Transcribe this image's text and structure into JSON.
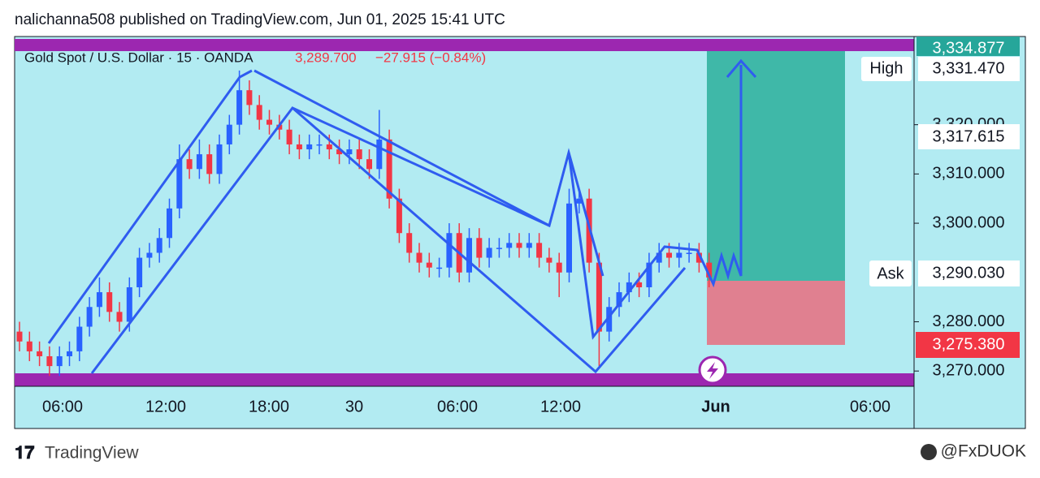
{
  "header": {
    "publisher": "nalichanna508 published on TradingView.com, Jun 01, 2025 15:41 UTC"
  },
  "chart_data": {
    "type": "candlestick",
    "title": "Gold Spot / U.S. Dollar · 15 · OANDA",
    "last_price": "3,289.700",
    "change": "−27.915 (−0.84%)",
    "ylim": [
      3266.9,
      3337.9
    ],
    "yticks": [
      {
        "value": 3270,
        "label": "3,270.000"
      },
      {
        "value": 3280,
        "label": "3,280.000"
      },
      {
        "value": 3300,
        "label": "3,300.000"
      },
      {
        "value": 3310,
        "label": "3,310.000"
      },
      {
        "value": 3320,
        "label": "3,320.000"
      }
    ],
    "xticks": [
      "06:00",
      "12:00",
      "18:00",
      "30",
      "06:00",
      "12:00",
      "Jun",
      "06:00"
    ],
    "up_color": "#2962ff",
    "down_color": "#f23645",
    "open": [
      3278,
      3276,
      3274,
      3273,
      3271,
      3273,
      3274,
      3279,
      3283,
      3286,
      3282,
      3280,
      3287,
      3293,
      3294,
      3297,
      3303,
      3313,
      3311,
      3314,
      3310,
      3316,
      3320,
      3327,
      3324,
      3321,
      3320,
      3319,
      3316,
      3315,
      3316,
      3316,
      3315,
      3314,
      3315,
      3313,
      3311,
      3317,
      3305,
      3298,
      3294,
      3292,
      3291,
      3291,
      3298,
      3290,
      3297,
      3293,
      3295,
      3295,
      3296,
      3295,
      3296,
      3293,
      3292,
      3290,
      3304,
      3305,
      3292,
      3278,
      3283,
      3286,
      3288,
      3287,
      3292,
      3294,
      3293,
      3294,
      3294,
      3292
    ],
    "high": [
      3280,
      3278,
      3276,
      3275,
      3275,
      3276,
      3281,
      3285,
      3289,
      3288,
      3284,
      3289,
      3295,
      3296,
      3299,
      3305,
      3316,
      3315,
      3317,
      3316,
      3318,
      3322,
      3331,
      3329,
      3326,
      3323,
      3322,
      3321,
      3318,
      3318,
      3318,
      3318,
      3317,
      3317,
      3317,
      3315,
      3323,
      3319,
      3307,
      3300,
      3296,
      3294,
      3293,
      3300,
      3300,
      3299,
      3299,
      3297,
      3297,
      3298,
      3298,
      3298,
      3298,
      3295,
      3294,
      3307,
      3307,
      3307,
      3294,
      3285,
      3288,
      3290,
      3290,
      3294,
      3296,
      3296,
      3296,
      3296,
      3296,
      3294
    ],
    "low": [
      3274,
      3272,
      3271,
      3269,
      3269,
      3271,
      3272,
      3277,
      3281,
      3280,
      3278,
      3278,
      3285,
      3291,
      3292,
      3295,
      3301,
      3309,
      3309,
      3308,
      3308,
      3314,
      3318,
      3322,
      3319,
      3318,
      3317,
      3314,
      3313,
      3313,
      3314,
      3313,
      3312,
      3312,
      3311,
      3309,
      3309,
      3303,
      3296,
      3292,
      3290,
      3289,
      3289,
      3289,
      3288,
      3288,
      3291,
      3291,
      3293,
      3293,
      3293,
      3293,
      3291,
      3290,
      3285,
      3288,
      3302,
      3290,
      3271,
      3276,
      3281,
      3284,
      3285,
      3285,
      3290,
      3291,
      3291,
      3292,
      3290,
      3287
    ],
    "close": [
      3276,
      3274,
      3273,
      3271,
      3273,
      3274,
      3279,
      3283,
      3286,
      3282,
      3280,
      3287,
      3293,
      3294,
      3297,
      3303,
      3313,
      3311,
      3314,
      3310,
      3316,
      3320,
      3327,
      3324,
      3321,
      3320,
      3319,
      3316,
      3315,
      3316,
      3316,
      3315,
      3314,
      3315,
      3313,
      3311,
      3317,
      3305,
      3298,
      3294,
      3292,
      3291,
      3291,
      3298,
      3290,
      3297,
      3293,
      3295,
      3295,
      3296,
      3295,
      3296,
      3293,
      3292,
      3290,
      3304,
      3305,
      3292,
      3278,
      3283,
      3286,
      3288,
      3287,
      3292,
      3294,
      3293,
      3294,
      3294,
      3292,
      3289
    ]
  },
  "price_labels": {
    "top": "3,334.877",
    "high_tag": "High",
    "high": "3,331.470",
    "mid": "3,317.615",
    "ask_tag": "Ask",
    "ask": "3,290.030",
    "stop": "3,275.380"
  },
  "footer": {
    "brand": "TradingView",
    "handle": "@FxDUOK"
  }
}
